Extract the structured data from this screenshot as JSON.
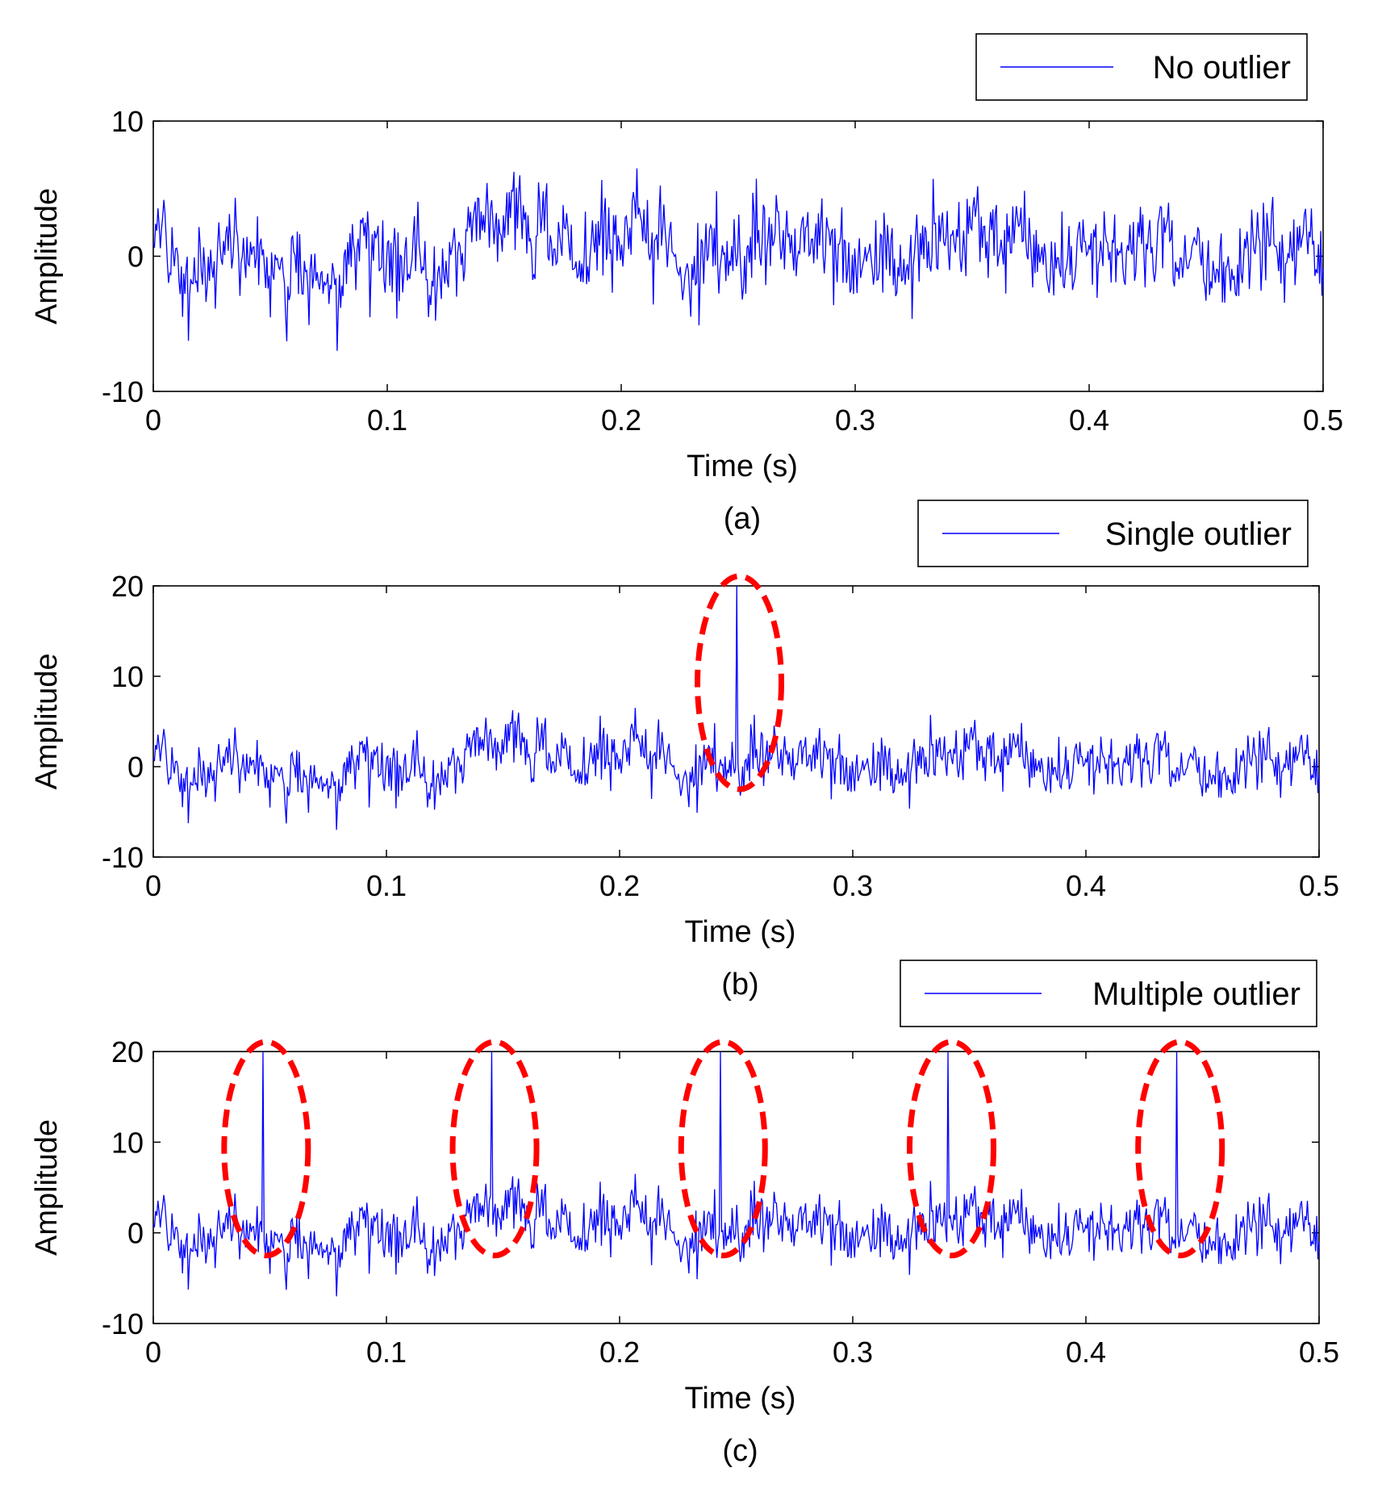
{
  "chart_data": [
    {
      "type": "line",
      "panel_caption": "(a)",
      "xlabel": "Time (s)",
      "ylabel": "Amplitude",
      "xlim": [
        0,
        0.5
      ],
      "ylim": [
        -10,
        10
      ],
      "xticks": [
        0,
        0.1,
        0.2,
        0.3,
        0.4,
        0.5
      ],
      "xtick_labels": [
        "0",
        "0.1",
        "0.2",
        "0.3",
        "0.4",
        "0.5"
      ],
      "yticks": [
        -10,
        0,
        10
      ],
      "ytick_labels": [
        "-10",
        "0",
        "10"
      ],
      "grid": false,
      "legend_position": "top-right",
      "series": [
        {
          "name": "No outlier",
          "color": "#0000ff"
        }
      ],
      "sample_count": 1000,
      "signal_range": [
        -7,
        6.5
      ],
      "outliers": [],
      "highlight_color": "#ff0000"
    },
    {
      "type": "line",
      "panel_caption": "(b)",
      "xlabel": "Time (s)",
      "ylabel": "Amplitude",
      "xlim": [
        0,
        0.5
      ],
      "ylim": [
        -10,
        20
      ],
      "xticks": [
        0,
        0.1,
        0.2,
        0.3,
        0.4,
        0.5
      ],
      "xtick_labels": [
        "0",
        "0.1",
        "0.2",
        "0.3",
        "0.4",
        "0.5"
      ],
      "yticks": [
        -10,
        0,
        10,
        20
      ],
      "ytick_labels": [
        "-10",
        "0",
        "10",
        "20"
      ],
      "grid": false,
      "legend_position": "top-right",
      "series": [
        {
          "name": "Single outlier",
          "color": "#0000ff"
        }
      ],
      "sample_count": 1000,
      "signal_range": [
        -7,
        6.5
      ],
      "outliers": [
        {
          "x": 0.25,
          "y": 20
        }
      ],
      "highlight_color": "#ff0000"
    },
    {
      "type": "line",
      "panel_caption": "(c)",
      "xlabel": "Time (s)",
      "ylabel": "Amplitude",
      "xlim": [
        0,
        0.5
      ],
      "ylim": [
        -10,
        20
      ],
      "xticks": [
        0,
        0.1,
        0.2,
        0.3,
        0.4,
        0.5
      ],
      "xtick_labels": [
        "0",
        "0.1",
        "0.2",
        "0.3",
        "0.4",
        "0.5"
      ],
      "yticks": [
        -10,
        0,
        10,
        20
      ],
      "ytick_labels": [
        "-10",
        "0",
        "10",
        "20"
      ],
      "grid": false,
      "legend_position": "top-right",
      "series": [
        {
          "name": "Multiple outlier",
          "color": "#0000ff"
        }
      ],
      "sample_count": 1000,
      "signal_range": [
        -7,
        6.5
      ],
      "outliers": [
        {
          "x": 0.047,
          "y": 20
        },
        {
          "x": 0.145,
          "y": 20
        },
        {
          "x": 0.243,
          "y": 20
        },
        {
          "x": 0.341,
          "y": 20
        },
        {
          "x": 0.439,
          "y": 20
        }
      ],
      "highlight_color": "#ff0000"
    }
  ]
}
